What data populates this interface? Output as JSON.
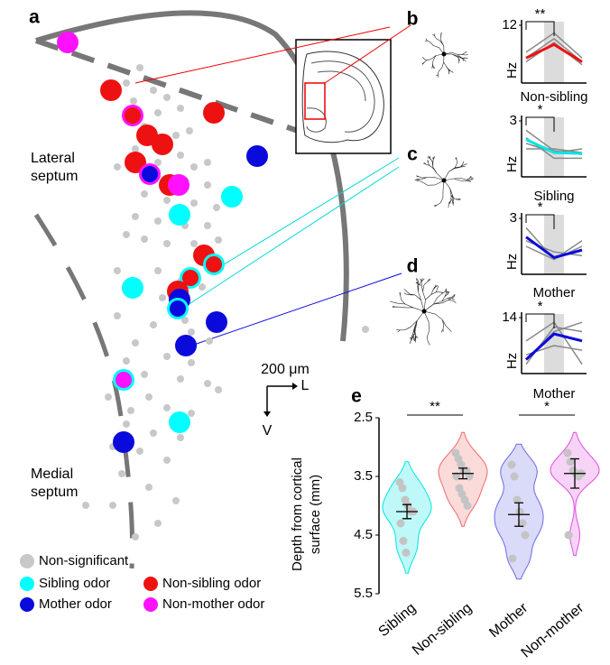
{
  "panel_labels": [
    "a",
    "b",
    "c",
    "d",
    "e"
  ],
  "regions": [
    "Lateral septum",
    "Medial septum"
  ],
  "scale_bar": {
    "length": "200 μm",
    "lateral": "L",
    "ventral": "V"
  },
  "legend": [
    {
      "label": "Non-significant",
      "color": "#c8c8c8"
    },
    {
      "label": "Sibling odor",
      "color": "#00ffff"
    },
    {
      "label": "Non-sibling odor",
      "color": "#ee1111"
    },
    {
      "label": "Mother odor",
      "color": "#0a0adc"
    },
    {
      "label": "Non-mother odor",
      "color": "#ff11ff"
    }
  ],
  "chart_data": [
    {
      "type": "line",
      "categories": [
        null,
        null,
        null
      ],
      "ylim": [
        6,
        12
      ],
      "yticks": [
        12
      ],
      "ylabel": "Hz",
      "xlabel": "Non-sibling",
      "annotation": "**",
      "series": [
        {
          "color": "#888888",
          "values": [
            8.6,
            10.6,
            8.2
          ]
        },
        {
          "color": "#888888",
          "values": [
            9.2,
            11.2,
            8.6
          ]
        },
        {
          "color": "#888888",
          "values": [
            8.2,
            10.2,
            7.9
          ]
        },
        {
          "color": "#ee1111",
          "values": [
            8.6,
            10.0,
            8.2
          ]
        }
      ]
    },
    {
      "type": "line",
      "categories": [
        null,
        null,
        null
      ],
      "ylim": [
        0,
        3
      ],
      "yticks": [
        3
      ],
      "ylabel": "Hz",
      "xlabel": "Sibling",
      "annotation": "*",
      "series": [
        {
          "color": "#888888",
          "values": [
            2.5,
            1.4,
            1.2
          ]
        },
        {
          "color": "#888888",
          "values": [
            2.1,
            1.0,
            1.0
          ]
        },
        {
          "color": "#888888",
          "values": [
            1.8,
            1.3,
            1.5
          ]
        },
        {
          "color": "#888888",
          "values": [
            1.5,
            1.5,
            1.3
          ]
        },
        {
          "color": "#00e5e5",
          "values": [
            2.0,
            1.3,
            1.25
          ]
        }
      ]
    },
    {
      "type": "line",
      "categories": [
        null,
        null,
        null
      ],
      "ylim": [
        0,
        3
      ],
      "yticks": [
        3
      ],
      "ylabel": "Hz",
      "xlabel": "Mother",
      "annotation": "*",
      "series": [
        {
          "color": "#888888",
          "values": [
            2.5,
            0.8,
            1.5
          ]
        },
        {
          "color": "#888888",
          "values": [
            1.5,
            0.8,
            1.8
          ]
        },
        {
          "color": "#888888",
          "values": [
            1.8,
            1.2,
            1.0
          ]
        },
        {
          "color": "#0a0adc",
          "values": [
            2.0,
            0.9,
            1.3
          ]
        }
      ]
    },
    {
      "type": "line",
      "categories": [
        null,
        null,
        null
      ],
      "ylim": [
        2,
        14
      ],
      "yticks": [
        14
      ],
      "ylabel": "Hz",
      "xlabel": "Mother",
      "annotation": "*",
      "series": [
        {
          "color": "#888888",
          "values": [
            9,
            13,
            4
          ]
        },
        {
          "color": "#888888",
          "values": [
            5,
            11,
            13
          ]
        },
        {
          "color": "#888888",
          "values": [
            6,
            8,
            7
          ]
        },
        {
          "color": "#888888",
          "values": [
            4,
            12,
            11
          ]
        },
        {
          "color": "#0a0adc",
          "values": [
            5,
            10.5,
            9
          ]
        }
      ]
    },
    {
      "type": "violin",
      "categories": [
        "Sibling",
        "Non-sibling",
        "Mother",
        "Non-mother"
      ],
      "colors": [
        "#00e5e5",
        "#f06a6a",
        "#6a6ae6",
        "#e04ee0"
      ],
      "ylim": [
        5.5,
        2.5
      ],
      "yticks": [
        2.5,
        3.5,
        4.5,
        5.5
      ],
      "ylabel": "Depth from cortical surface (mm)",
      "values": [
        [
          3.6,
          3.7,
          3.9,
          4.0,
          4.1,
          4.1,
          4.3,
          4.6,
          4.8
        ],
        [
          3.1,
          3.2,
          3.3,
          3.4,
          3.4,
          3.5,
          3.5,
          3.7,
          3.8,
          3.9,
          4.0
        ],
        [
          3.3,
          3.5,
          3.9,
          4.1,
          4.3,
          4.5,
          4.9
        ],
        [
          3.1,
          3.25,
          3.4,
          3.45,
          3.5,
          3.45,
          4.5
        ]
      ],
      "means": [
        4.1,
        3.45,
        4.15,
        3.45
      ],
      "errors": [
        0.12,
        0.09,
        0.2,
        0.25
      ],
      "annotations": [
        "**",
        "*"
      ]
    }
  ]
}
